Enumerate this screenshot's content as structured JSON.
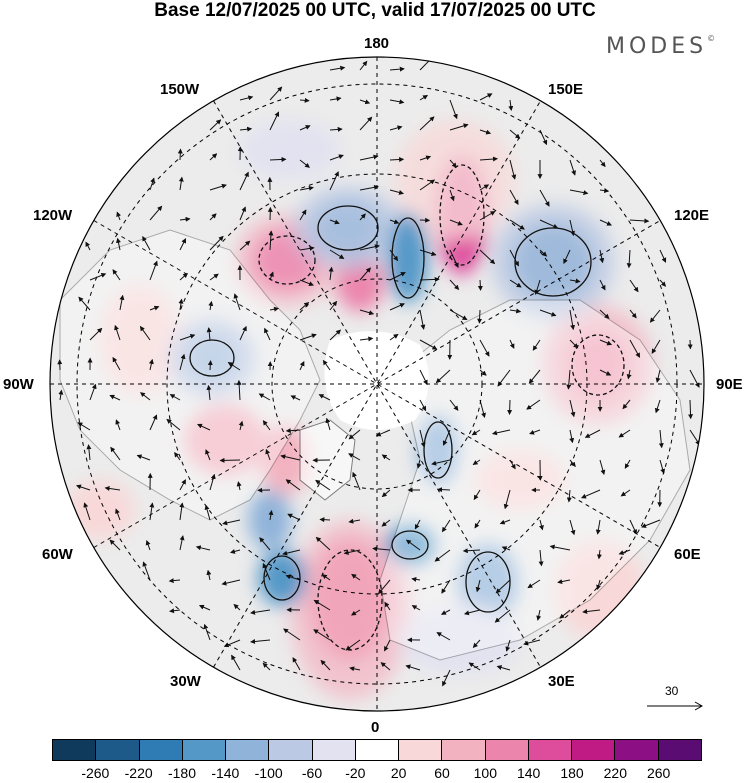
{
  "title": "Base 12/07/2025 00 UTC, valid 17/07/2025 00 UTC",
  "logo": {
    "text": "MODES",
    "mark": "©"
  },
  "longitude_labels": {
    "top": "180",
    "bottom": "0",
    "left": "90W",
    "right": "90E",
    "upper_left_1": "150W",
    "upper_left_2": "120W",
    "upper_right_1": "150E",
    "upper_right_2": "120E",
    "lower_left_1": "60W",
    "lower_left_2": "30W",
    "lower_right_1": "60E",
    "lower_right_2": "30E"
  },
  "map": {
    "projection": "north-polar-stereographic",
    "grid": true,
    "field": "geopotential height anomaly with wind vectors",
    "colors": {
      "ocean_fill": "#ececec",
      "land_fill": "#ffffff",
      "coast": "#333333",
      "grid": "#000000"
    }
  },
  "colorbar": {
    "labels": [
      "-260",
      "-220",
      "-180",
      "-140",
      "-100",
      "-60",
      "-20",
      "20",
      "60",
      "100",
      "140",
      "180",
      "220",
      "260"
    ],
    "colors": [
      "#0f3a5c",
      "#1d5a8a",
      "#2e7cb3",
      "#5498c8",
      "#8fb3d9",
      "#bcc9e4",
      "#e2e2f0",
      "#ffffff",
      "#f8d8d8",
      "#f3b2c0",
      "#ec85ac",
      "#de4c9c",
      "#c01b85",
      "#8c0f83",
      "#5a0c73"
    ]
  },
  "reference_vector": {
    "label": "30"
  }
}
